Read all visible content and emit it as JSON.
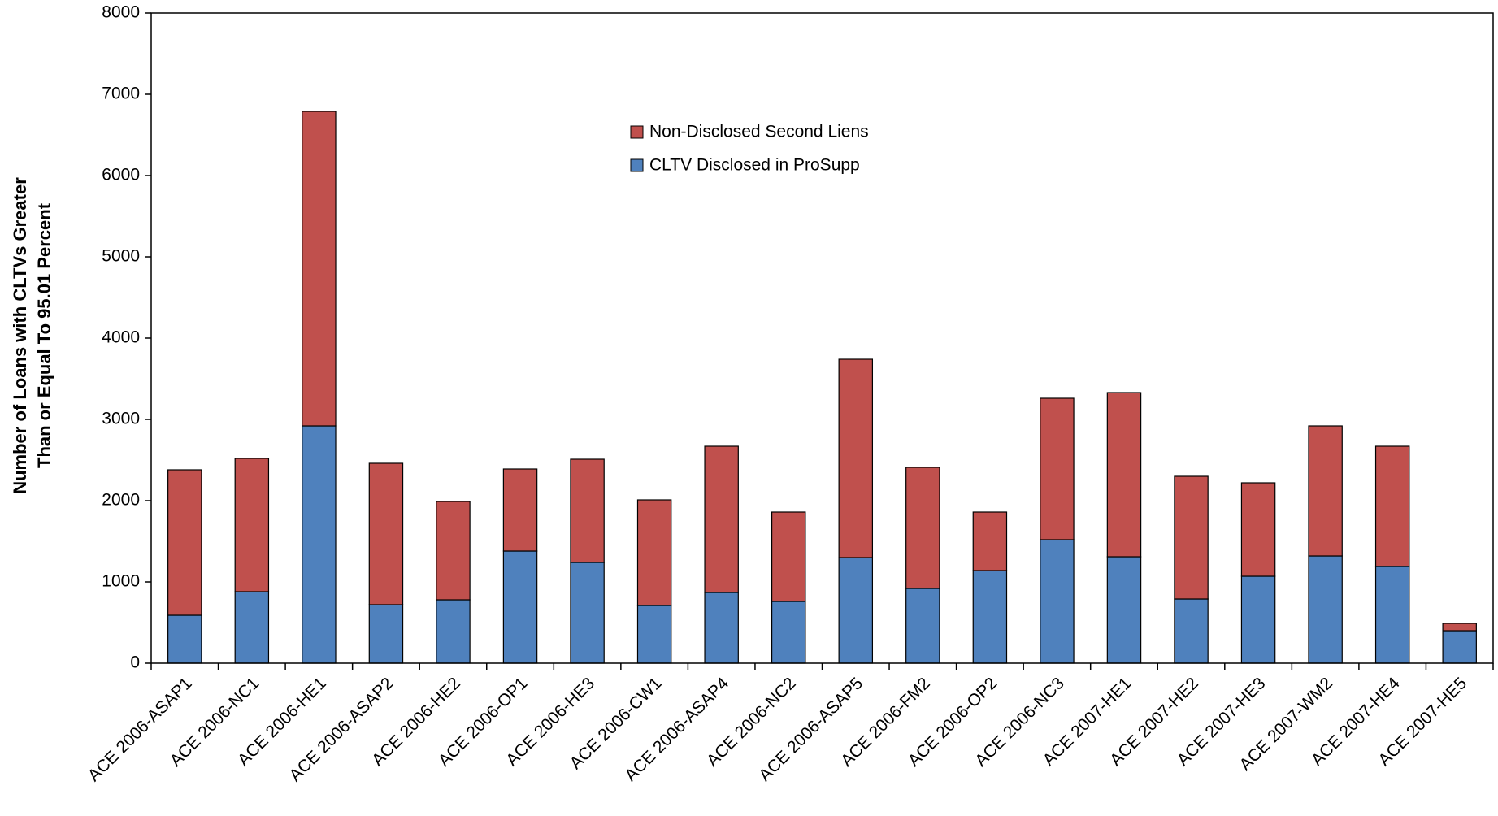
{
  "chart_data": {
    "type": "stacked_bar",
    "y_label": [
      "Number of Loans with CLTVs Greater",
      "Than or Equal To 95.01 Percent"
    ],
    "categories": [
      "ACE 2006-ASAP1",
      "ACE 2006-NC1",
      "ACE 2006-HE1",
      "ACE 2006-ASAP2",
      "ACE 2006-HE2",
      "ACE 2006-OP1",
      "ACE 2006-HE3",
      "ACE 2006-CW1",
      "ACE 2006-ASAP4",
      "ACE 2006-NC2",
      "ACE 2006-ASAP5",
      "ACE 2006-FM2",
      "ACE 2006-OP2",
      "ACE 2006-NC3",
      "ACE 2007-HE1",
      "ACE 2007-HE2",
      "ACE 2007-HE3",
      "ACE 2007-WM2",
      "ACE 2007-HE4",
      "ACE 2007-HE5"
    ],
    "series": [
      {
        "name": "CLTV Disclosed in ProSupp",
        "color": "#4f81bd",
        "values": [
          590,
          880,
          2920,
          720,
          780,
          1380,
          1240,
          710,
          870,
          760,
          1300,
          920,
          1140,
          1520,
          1310,
          790,
          1070,
          1320,
          1190,
          400
        ]
      },
      {
        "name": "Non-Disclosed Second Liens",
        "color": "#c0504d",
        "values": [
          1790,
          1640,
          3870,
          1740,
          1210,
          1010,
          1270,
          1300,
          1800,
          1100,
          2440,
          1490,
          720,
          1740,
          2020,
          1510,
          1150,
          1600,
          1480,
          90
        ]
      }
    ],
    "ylim": [
      0,
      8000
    ],
    "yticks": [
      0,
      1000,
      2000,
      3000,
      4000,
      5000,
      6000,
      7000,
      8000
    ],
    "grid": false,
    "legend_position": "top-center"
  }
}
